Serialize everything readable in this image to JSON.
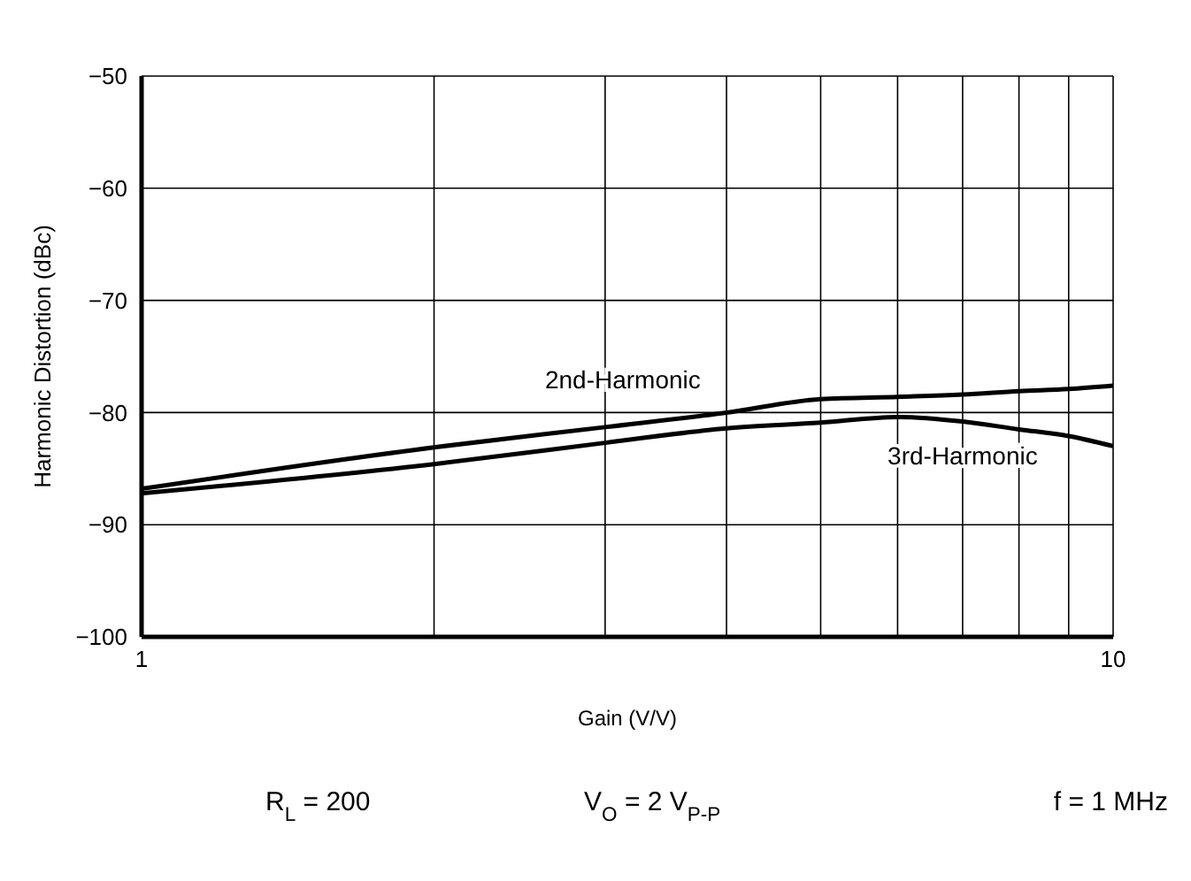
{
  "chart_data": {
    "type": "line",
    "xlabel": "Gain (V/V)",
    "ylabel": "Harmonic Distortion (dBc)",
    "log": "x",
    "grid": true,
    "line_style": "solid",
    "marker": "none",
    "xlim": [
      1,
      10
    ],
    "xticks": [
      1,
      {
        "value": 2,
        "label": null
      },
      {
        "value": 3,
        "label": null
      },
      {
        "value": 4,
        "label": null
      },
      {
        "value": 5,
        "label": null
      },
      {
        "value": 6,
        "label": null
      },
      {
        "value": 7,
        "label": null
      },
      {
        "value": 8,
        "label": null
      },
      {
        "value": 9,
        "label": null
      },
      10
    ],
    "ylim": [
      -100,
      -50
    ],
    "yticks": [
      -100,
      -90,
      -80,
      -70,
      -60,
      -50
    ],
    "series": [
      {
        "name": "2nd-Harmonic",
        "color": "#000000",
        "x": [
          1,
          2,
          3,
          4,
          5,
          6,
          7,
          8,
          9,
          10
        ],
        "values": [
          -86.8,
          -83.1,
          -81.3,
          -80.0,
          -78.8,
          -78.6,
          -78.4,
          -78.1,
          -77.9,
          -77.6
        ]
      },
      {
        "name": "3rd-Harmonic",
        "color": "#000000",
        "x": [
          1,
          2,
          3,
          4,
          5,
          6,
          7,
          8,
          9,
          10
        ],
        "values": [
          -87.2,
          -84.6,
          -82.7,
          -81.4,
          -80.9,
          -80.4,
          -80.8,
          -81.5,
          -82.1,
          -83.0
        ]
      }
    ],
    "annotations": [
      "R$_{L}$ = 200",
      "V$_{O}$ = 2 V$_{P-P}$",
      "f = 1 MHz"
    ]
  }
}
